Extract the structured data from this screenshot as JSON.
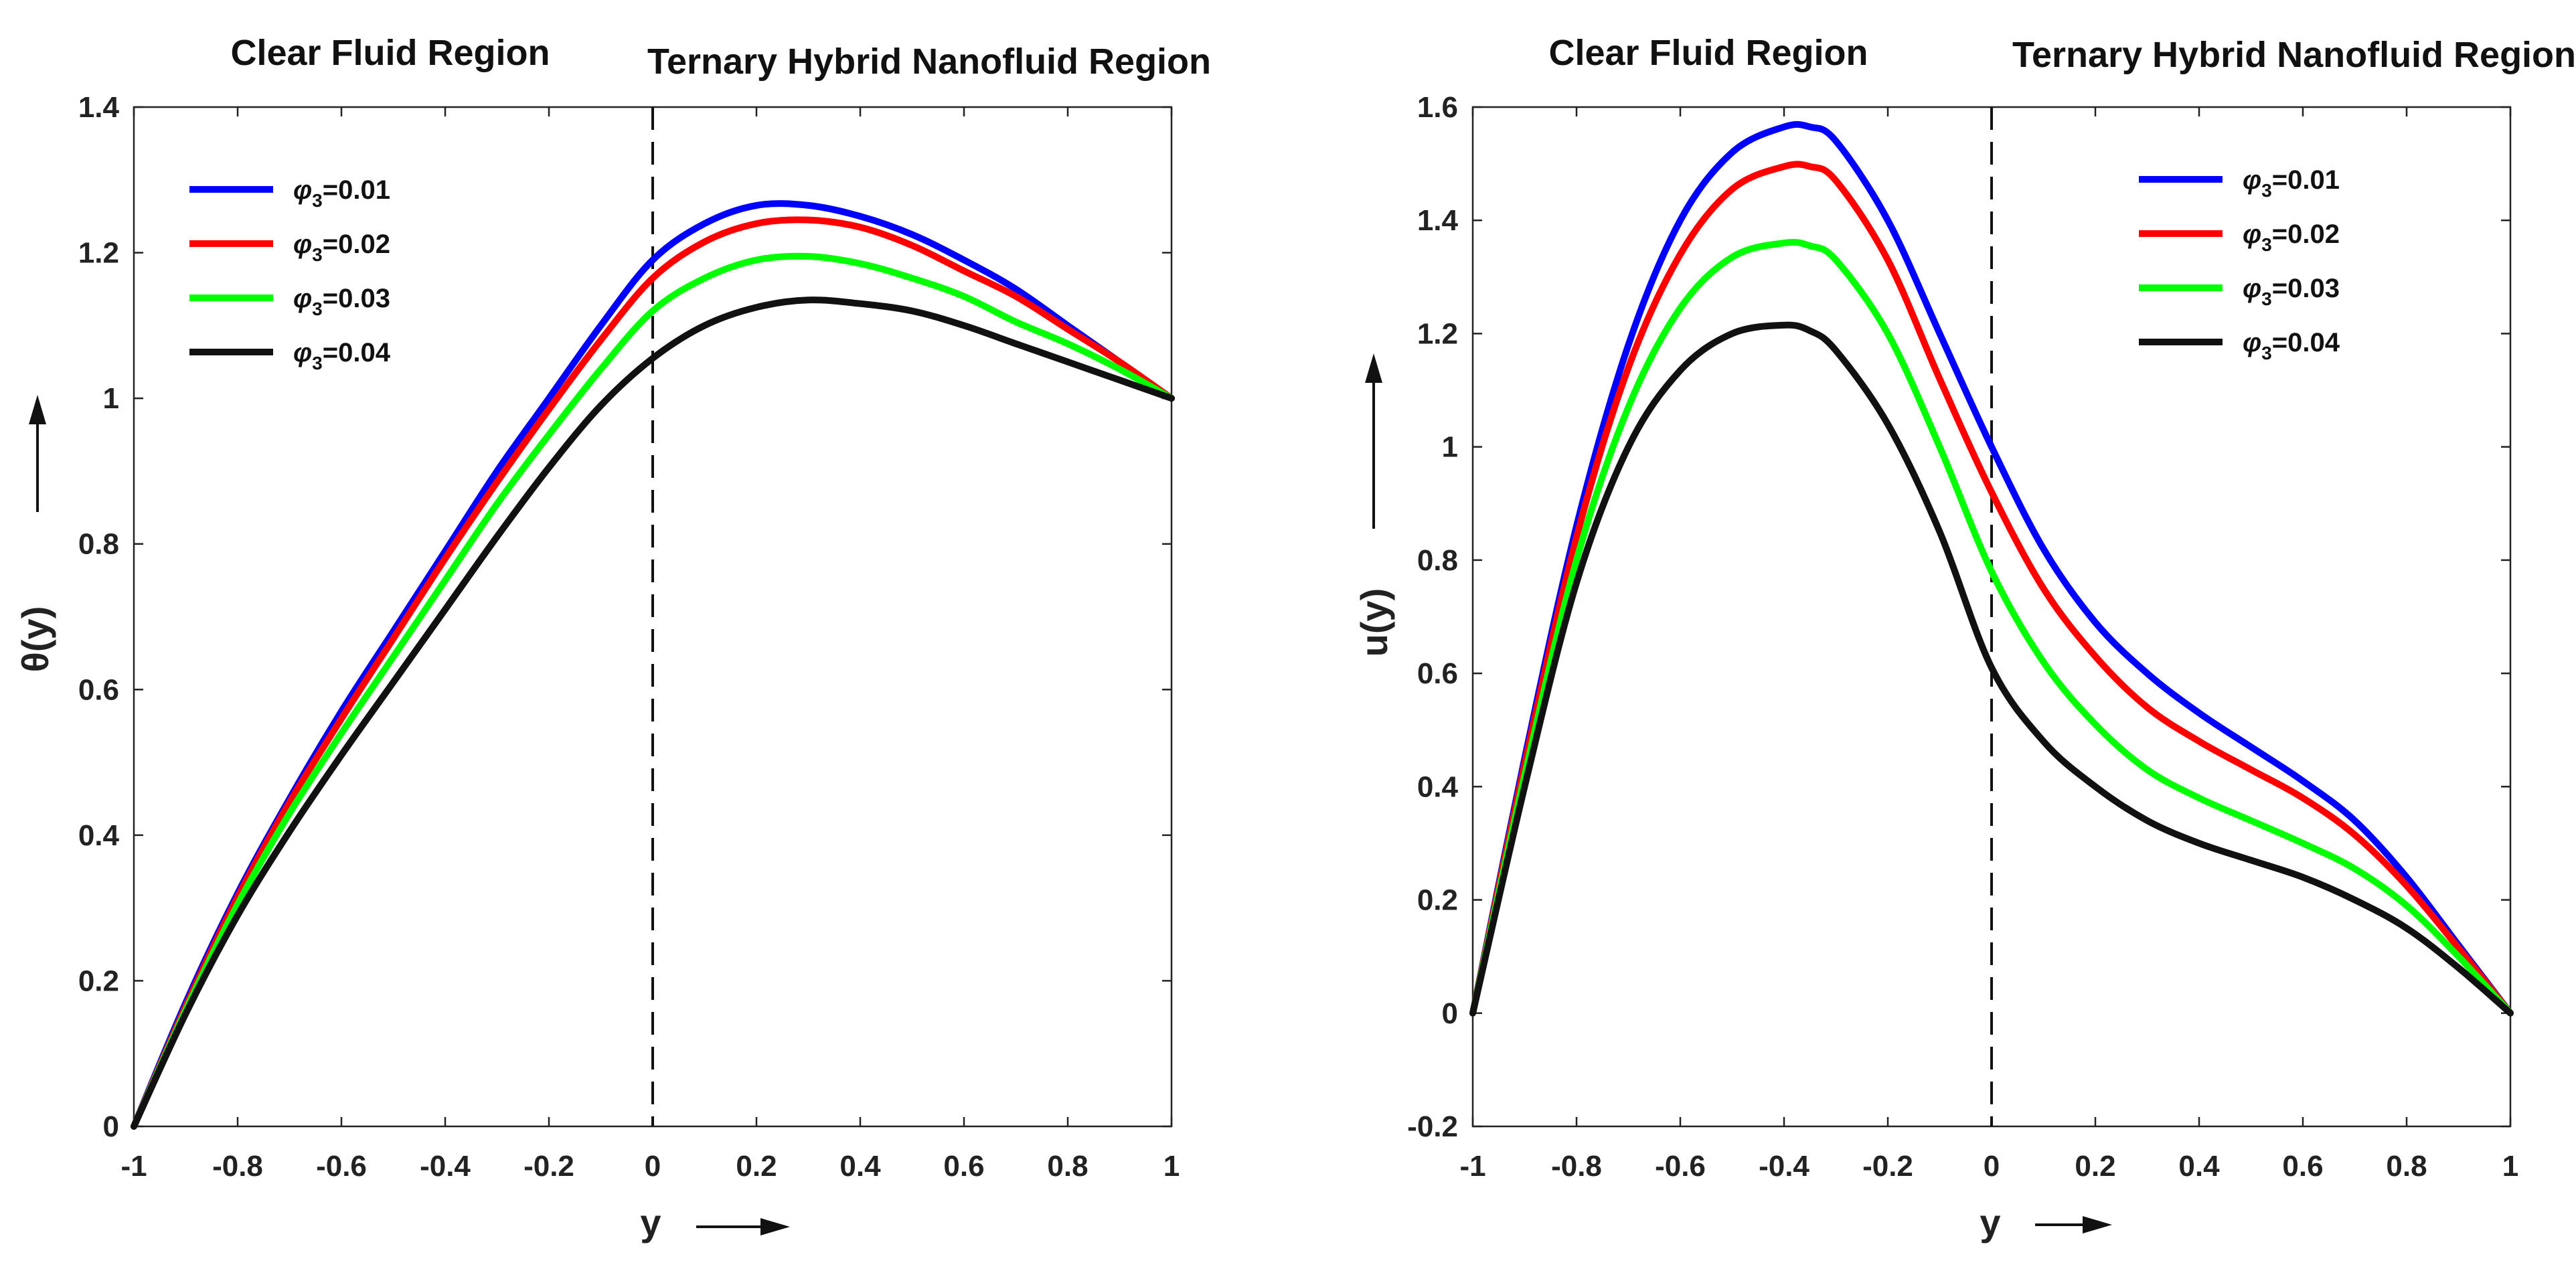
{
  "chart_data": [
    {
      "type": "line",
      "region_labels": {
        "left": "Clear Fluid Region",
        "right": "Ternary Hybrid Nanofluid Region"
      },
      "xlabel": "y",
      "ylabel": "θ(y)",
      "xlim": [
        -1,
        1
      ],
      "ylim": [
        0,
        1.4
      ],
      "xticks": [
        "-1",
        "-0.8",
        "-0.6",
        "-0.4",
        "-0.2",
        "0",
        "0.2",
        "0.4",
        "0.6",
        "0.8",
        "1"
      ],
      "yticks": [
        "0",
        "0.2",
        "0.4",
        "0.6",
        "0.8",
        "1",
        "1.2",
        "1.4"
      ],
      "divider_x": 0,
      "legend_position": "top-left",
      "x": [
        -1,
        -0.9,
        -0.8,
        -0.7,
        -0.6,
        -0.5,
        -0.4,
        -0.3,
        -0.2,
        -0.1,
        0,
        0.1,
        0.2,
        0.3,
        0.4,
        0.5,
        0.6,
        0.7,
        0.8,
        0.9,
        1
      ],
      "series": [
        {
          "name": "φ3=0.01",
          "symbol": "φ",
          "subscript": "3",
          "value_text": "=0.01",
          "color": "#0000ff",
          "values": [
            0,
            0.17,
            0.32,
            0.45,
            0.57,
            0.68,
            0.79,
            0.9,
            1.0,
            1.1,
            1.19,
            1.24,
            1.265,
            1.265,
            1.25,
            1.225,
            1.19,
            1.15,
            1.1,
            1.05,
            1.0
          ]
        },
        {
          "name": "φ3=0.02",
          "symbol": "φ",
          "subscript": "3",
          "value_text": "=0.02",
          "color": "#ff0000",
          "values": [
            0,
            0.165,
            0.315,
            0.445,
            0.56,
            0.67,
            0.78,
            0.885,
            0.985,
            1.08,
            1.165,
            1.215,
            1.24,
            1.245,
            1.235,
            1.21,
            1.175,
            1.14,
            1.095,
            1.05,
            1.0
          ]
        },
        {
          "name": "φ3=0.03",
          "symbol": "φ",
          "subscript": "3",
          "value_text": "=0.03",
          "color": "#00ff00",
          "values": [
            0,
            0.16,
            0.305,
            0.43,
            0.54,
            0.645,
            0.75,
            0.855,
            0.95,
            1.04,
            1.12,
            1.165,
            1.19,
            1.195,
            1.185,
            1.165,
            1.14,
            1.105,
            1.075,
            1.04,
            1.0
          ]
        },
        {
          "name": "φ3=0.04",
          "symbol": "φ",
          "subscript": "3",
          "value_text": "=0.04",
          "color": "#111111",
          "values": [
            0,
            0.155,
            0.29,
            0.405,
            0.51,
            0.61,
            0.71,
            0.81,
            0.905,
            0.99,
            1.055,
            1.1,
            1.125,
            1.135,
            1.13,
            1.12,
            1.1,
            1.075,
            1.05,
            1.025,
            1.0
          ]
        }
      ]
    },
    {
      "type": "line",
      "region_labels": {
        "left": "Clear Fluid Region",
        "right": "Ternary Hybrid Nanofluid Region"
      },
      "xlabel": "y",
      "ylabel": "u(y)",
      "xlim": [
        -1,
        1
      ],
      "ylim": [
        -0.2,
        1.6
      ],
      "xticks": [
        "-1",
        "-0.8",
        "-0.6",
        "-0.4",
        "-0.2",
        "0",
        "0.2",
        "0.4",
        "0.6",
        "0.8",
        "1"
      ],
      "yticks": [
        "-0.2",
        "0",
        "0.2",
        "0.4",
        "0.6",
        "0.8",
        "1",
        "1.2",
        "1.4",
        "1.6"
      ],
      "divider_x": 0,
      "legend_position": "top-right",
      "x": [
        -1,
        -0.9,
        -0.8,
        -0.7,
        -0.6,
        -0.5,
        -0.4,
        -0.35,
        -0.3,
        -0.2,
        -0.1,
        0,
        0.1,
        0.2,
        0.3,
        0.4,
        0.5,
        0.6,
        0.7,
        0.8,
        0.9,
        1
      ],
      "series": [
        {
          "name": "φ3=0.01",
          "symbol": "φ",
          "subscript": "3",
          "value_text": "=0.01",
          "color": "#0000ff",
          "values": [
            0,
            0.45,
            0.86,
            1.18,
            1.4,
            1.52,
            1.565,
            1.565,
            1.54,
            1.4,
            1.2,
            1.0,
            0.82,
            0.69,
            0.6,
            0.53,
            0.47,
            0.41,
            0.34,
            0.24,
            0.12,
            0
          ]
        },
        {
          "name": "φ3=0.02",
          "symbol": "φ",
          "subscript": "3",
          "value_text": "=0.02",
          "color": "#ff0000",
          "values": [
            0,
            0.44,
            0.84,
            1.14,
            1.34,
            1.455,
            1.495,
            1.495,
            1.47,
            1.33,
            1.12,
            0.92,
            0.75,
            0.63,
            0.54,
            0.48,
            0.43,
            0.38,
            0.315,
            0.225,
            0.115,
            0
          ]
        },
        {
          "name": "φ3=0.03",
          "symbol": "φ",
          "subscript": "3",
          "value_text": "=0.03",
          "color": "#00ff00",
          "values": [
            0,
            0.42,
            0.8,
            1.07,
            1.245,
            1.335,
            1.36,
            1.355,
            1.33,
            1.2,
            1.0,
            0.78,
            0.62,
            0.51,
            0.43,
            0.38,
            0.34,
            0.3,
            0.255,
            0.19,
            0.1,
            0
          ]
        },
        {
          "name": "φ3=0.04",
          "symbol": "φ",
          "subscript": "3",
          "value_text": "=0.04",
          "color": "#111111",
          "values": [
            0,
            0.4,
            0.76,
            1.0,
            1.135,
            1.2,
            1.215,
            1.205,
            1.17,
            1.04,
            0.85,
            0.61,
            0.48,
            0.4,
            0.34,
            0.3,
            0.27,
            0.24,
            0.2,
            0.15,
            0.08,
            0
          ]
        }
      ]
    }
  ]
}
